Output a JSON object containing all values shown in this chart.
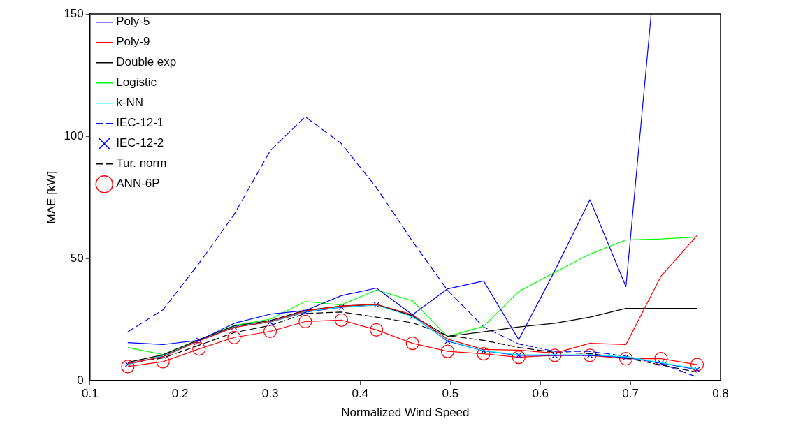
{
  "chart_data": {
    "type": "line",
    "xlabel": "Normalized Wind Speed",
    "ylabel": "MAE [kW]",
    "x": [
      0.142,
      0.181,
      0.221,
      0.26,
      0.3,
      0.339,
      0.379,
      0.418,
      0.458,
      0.497,
      0.537,
      0.576,
      0.616,
      0.655,
      0.695,
      0.734,
      0.774
    ],
    "xlim": [
      0.1,
      0.8
    ],
    "xticks": [
      0.1,
      0.2,
      0.3,
      0.4,
      0.5,
      0.6,
      0.7,
      0.8
    ],
    "ylim": [
      0,
      150
    ],
    "yticks": [
      0,
      50,
      100,
      150
    ],
    "grid": false,
    "legend": "top left",
    "series": [
      {
        "name": "Poly-5",
        "color": "#0000ff",
        "line_style": "solid",
        "marker": "none",
        "x": [
          0.142,
          0.181,
          0.221,
          0.26,
          0.3,
          0.339,
          0.379,
          0.418,
          0.458,
          0.497,
          0.537,
          0.576,
          0.616,
          0.655,
          0.695,
          0.723
        ],
        "values": [
          15.6,
          14.8,
          16.5,
          23.5,
          27.2,
          28.7,
          34.8,
          37.9,
          27,
          37.6,
          40.8,
          16.8,
          45,
          74,
          38.5,
          150
        ]
      },
      {
        "name": "Poly-9",
        "color": "#ff0000",
        "line_style": "solid",
        "marker": "none",
        "values": [
          7,
          9.8,
          16.3,
          21.8,
          24.2,
          28.5,
          30.6,
          31.2,
          27,
          17,
          12.8,
          12.5,
          11.3,
          15.3,
          14.8,
          42.8,
          59.4
        ]
      },
      {
        "name": "Double exp",
        "color": "#000000",
        "line_style": "solid",
        "marker": "none",
        "values": [
          7.5,
          10.6,
          16.8,
          22.4,
          24.6,
          28.8,
          30.5,
          31.3,
          26.6,
          18.2,
          20,
          22,
          23.5,
          26,
          29.6,
          29.6,
          29.6
        ]
      },
      {
        "name": "Logistic",
        "color": "#00ff00",
        "line_style": "solid",
        "marker": "none",
        "values": [
          13.6,
          10.7,
          16.8,
          22.6,
          25.2,
          32.4,
          31,
          37.1,
          32.7,
          18,
          22.3,
          36.5,
          44.3,
          51.8,
          57.6,
          58,
          58.8
        ]
      },
      {
        "name": "k-NN",
        "color": "#00ffff",
        "line_style": "solid",
        "marker": "none",
        "values": [
          6.8,
          10.2,
          16.6,
          22.2,
          24.1,
          28.3,
          30.2,
          31,
          26.2,
          16.4,
          12.3,
          10.6,
          10.6,
          10.6,
          9.8,
          7.4,
          4.9
        ]
      },
      {
        "name": "IEC-12-1",
        "color": "#0000ff",
        "line_style": "dashed",
        "marker": "none",
        "values": [
          20,
          29,
          48,
          68,
          94,
          108,
          97,
          79,
          57,
          37,
          22,
          15,
          12,
          12,
          10,
          7,
          1.5
        ]
      },
      {
        "name": "IEC-12-2",
        "color": "#0000ff",
        "line_style": "solid",
        "marker": "cross",
        "values": [
          6.7,
          10.1,
          16.5,
          22,
          24,
          28.1,
          30.1,
          31,
          26.4,
          16.2,
          12.2,
          10.4,
          10.4,
          10.4,
          9.6,
          7.2,
          4.6
        ]
      },
      {
        "name": "Tur. norm",
        "color": "#000000",
        "line_style": "dashed",
        "marker": "none",
        "values": [
          7.3,
          9.3,
          14.5,
          19.7,
          22.6,
          27.5,
          28.1,
          26,
          23.7,
          18.5,
          16.5,
          13.6,
          11.6,
          11.1,
          9.3,
          6.4,
          3.5
        ]
      },
      {
        "name": "ANN-6P",
        "color": "#ff0000",
        "line_style": "solid",
        "marker": "circle",
        "values": [
          5.8,
          7.8,
          13,
          17.7,
          20.2,
          24.2,
          24.8,
          20.8,
          15.3,
          12,
          11,
          9.6,
          10.4,
          10.4,
          9,
          9,
          6.6
        ]
      }
    ]
  }
}
